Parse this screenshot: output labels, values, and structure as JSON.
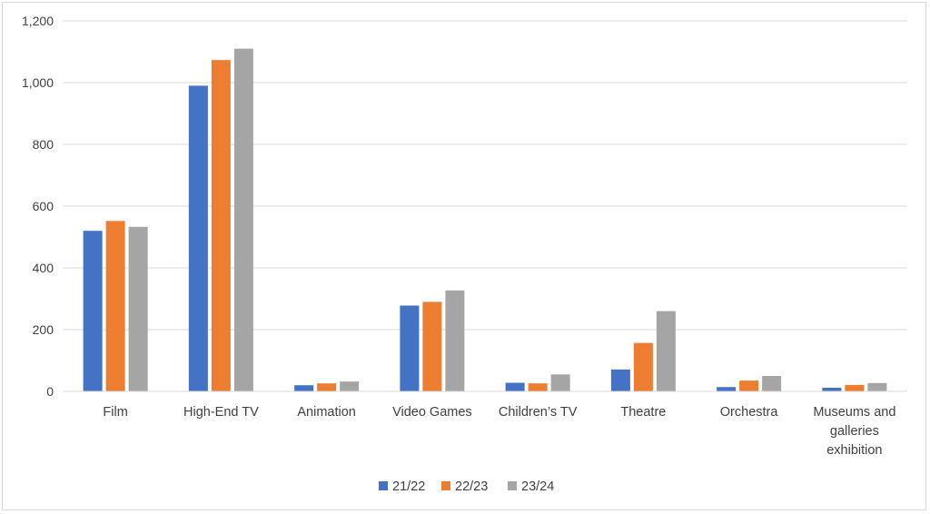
{
  "chart_data": {
    "type": "bar",
    "title": "",
    "xlabel": "",
    "ylabel": "",
    "categories": [
      [
        "Film"
      ],
      [
        "High-End TV"
      ],
      [
        "Animation"
      ],
      [
        "Video Games"
      ],
      [
        "Children’s TV"
      ],
      [
        "Theatre"
      ],
      [
        "Orchestra"
      ],
      [
        "Museums and",
        "galleries",
        "exhibition"
      ]
    ],
    "series": [
      {
        "name": "21/22",
        "color": "#4472c4",
        "values": [
          520,
          990,
          20,
          278,
          28,
          71,
          14,
          12
        ]
      },
      {
        "name": "22/23",
        "color": "#ed7d31",
        "values": [
          552,
          1073,
          26,
          290,
          26,
          157,
          35,
          21
        ]
      },
      {
        "name": "23/24",
        "color": "#a5a5a5",
        "values": [
          533,
          1110,
          32,
          327,
          55,
          260,
          50,
          27
        ]
      }
    ],
    "ylim": [
      0,
      1200
    ],
    "yticks": [
      "0",
      "200",
      "400",
      "600",
      "800",
      "1,000",
      "1,200"
    ],
    "ytick_values": [
      0,
      200,
      400,
      600,
      800,
      1000,
      1200
    ],
    "grid": true,
    "legend_position": "bottom"
  }
}
